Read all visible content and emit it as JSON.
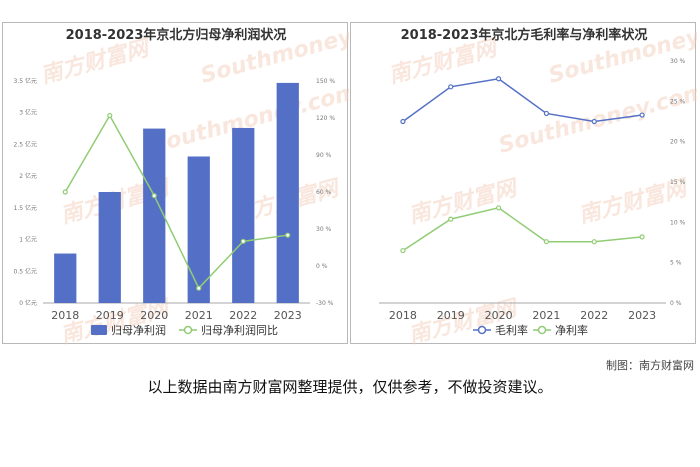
{
  "chart_data": [
    {
      "type": "bar",
      "title": "2018-2023年京北方归母净利润状况",
      "categories": [
        "2018",
        "2019",
        "2020",
        "2021",
        "2022",
        "2023"
      ],
      "y_left_ticks": [
        "0 亿元",
        "0.5 亿元",
        "1 亿元",
        "1.5 亿元",
        "2 亿元",
        "2.5 亿元",
        "3 亿元",
        "3.5 亿元"
      ],
      "y_right_ticks": [
        "-30 %",
        "0 %",
        "30 %",
        "60 %",
        "90 %",
        "120 %",
        "150 %"
      ],
      "ylim_left": [
        0,
        3.5
      ],
      "ylim_right": [
        -30,
        150
      ],
      "series": [
        {
          "name": "归母净利润",
          "type": "bar",
          "axis": "left",
          "color": "#5470c6",
          "values": [
            0.78,
            1.75,
            2.75,
            2.31,
            2.76,
            3.47
          ]
        },
        {
          "name": "归母净利润同比",
          "type": "line",
          "axis": "right",
          "color": "#91cc75",
          "values": [
            60,
            122,
            57,
            -18,
            20,
            25
          ]
        }
      ],
      "legend_position": "bottom",
      "grid": false
    },
    {
      "type": "line",
      "title": "2018-2023年京北方毛利率与净利率状况",
      "categories": [
        "2018",
        "2019",
        "2020",
        "2021",
        "2022",
        "2023"
      ],
      "y_right_ticks": [
        "0 %",
        "5 %",
        "10 %",
        "15 %",
        "20 %",
        "25 %",
        "30 %"
      ],
      "ylim": [
        0,
        30
      ],
      "series": [
        {
          "name": "毛利率",
          "color": "#5470c6",
          "values": [
            22.5,
            26.8,
            27.8,
            23.5,
            22.5,
            23.3
          ]
        },
        {
          "name": "净利率",
          "color": "#91cc75",
          "values": [
            6.5,
            10.4,
            11.8,
            7.6,
            7.6,
            8.2
          ]
        }
      ],
      "legend_position": "bottom",
      "grid": false
    }
  ],
  "watermark": [
    "南方财富网",
    "Southmoney.com"
  ],
  "credit": "制图：南方财富网",
  "disclaimer": "以上数据由南方财富网整理提供，仅供参考，不做投资建议。"
}
